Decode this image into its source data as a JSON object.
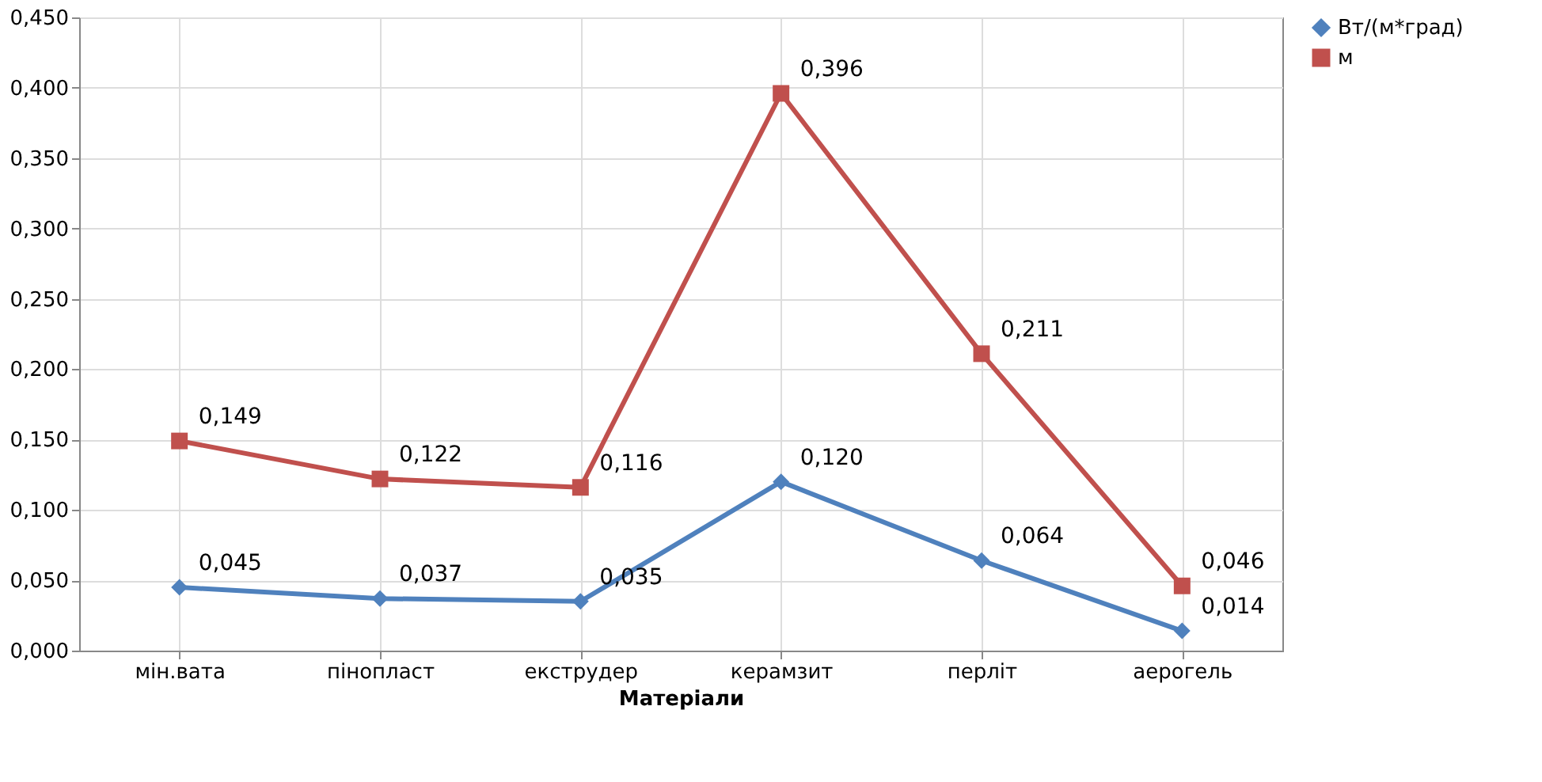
{
  "chart_data": {
    "type": "line",
    "xlabel": "Матеріали",
    "categories": [
      "мін.вата",
      "пінопласт",
      "екструдер",
      "керамзит",
      "перліт",
      "аерогель"
    ],
    "series": [
      {
        "name": "Вт/(м*град)",
        "color": "#4f81bd",
        "marker": "diamond",
        "values": [
          0.045,
          0.037,
          0.035,
          0.12,
          0.064,
          0.014
        ],
        "value_labels": [
          "0,045",
          "0,037",
          "0,035",
          "0,120",
          "0,064",
          "0,014"
        ]
      },
      {
        "name": "м",
        "color": "#c0504d",
        "marker": "square",
        "values": [
          0.149,
          0.122,
          0.116,
          0.396,
          0.211,
          0.046
        ],
        "value_labels": [
          "0,149",
          "0,122",
          "0,116",
          "0,396",
          "0,211",
          "0,046"
        ]
      }
    ],
    "ylim": [
      0,
      0.45
    ],
    "yticks": [
      {
        "value": 0,
        "label": "0,000"
      },
      {
        "value": 0.05,
        "label": "0,050"
      },
      {
        "value": 0.1,
        "label": "0,100"
      },
      {
        "value": 0.15,
        "label": "0,150"
      },
      {
        "value": 0.2,
        "label": "0,200"
      },
      {
        "value": 0.25,
        "label": "0,250"
      },
      {
        "value": 0.3,
        "label": "0,300"
      },
      {
        "value": 0.35,
        "label": "0,350"
      },
      {
        "value": 0.4,
        "label": "0,400"
      },
      {
        "value": 0.45,
        "label": "0,450"
      }
    ],
    "grid": true,
    "legend": "right",
    "line_style": "solid"
  }
}
